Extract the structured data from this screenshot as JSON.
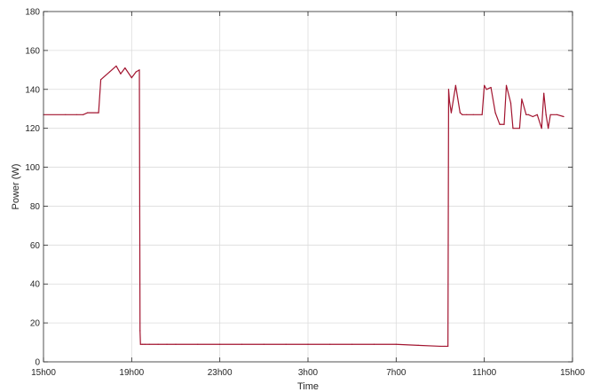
{
  "chart_data": {
    "type": "line",
    "xlabel": "Time",
    "ylabel": "Power (W)",
    "xlim": [
      15,
      39
    ],
    "ylim": [
      0,
      180
    ],
    "grid": true,
    "x_ticks": [
      {
        "value": 15,
        "label": "15h00"
      },
      {
        "value": 19,
        "label": "19h00"
      },
      {
        "value": 23,
        "label": "23h00"
      },
      {
        "value": 27,
        "label": "3h00"
      },
      {
        "value": 31,
        "label": "7h00"
      },
      {
        "value": 35,
        "label": "11h00"
      },
      {
        "value": 39,
        "label": "15h00"
      }
    ],
    "y_ticks": [
      0,
      20,
      40,
      60,
      80,
      100,
      120,
      140,
      160,
      180
    ],
    "series_color": "#a2142f",
    "series": [
      {
        "x": [
          15.0,
          16.0,
          16.5,
          16.8,
          17.0,
          17.5,
          17.6,
          17.8,
          18.0,
          18.3,
          18.5,
          18.7,
          19.0,
          19.2,
          19.35,
          19.38,
          19.4,
          19.5,
          19.6,
          19.8,
          20.2,
          20.6,
          21.0,
          22.0,
          23.0,
          24.0,
          25.0,
          26.0,
          27.0,
          28.0,
          29.0,
          30.0,
          31.0,
          32.0,
          33.0,
          33.2,
          33.35,
          33.38,
          33.42,
          33.5,
          33.7,
          33.9,
          34.0,
          34.2,
          34.5,
          34.9,
          35.0,
          35.1,
          35.3,
          35.5,
          35.7,
          35.9,
          36.0,
          36.2,
          36.3,
          36.6,
          36.7,
          36.9,
          37.0,
          37.2,
          37.4,
          37.6,
          37.7,
          37.8,
          37.9,
          38.0,
          38.3,
          38.6
        ],
        "y": [
          127,
          127,
          127,
          127,
          128,
          128,
          145,
          147,
          149,
          152,
          148,
          151,
          146,
          149,
          150,
          16,
          9,
          9,
          9,
          9,
          9,
          9,
          9,
          9,
          9,
          9,
          9,
          9,
          9,
          9,
          9,
          9,
          9,
          8.5,
          8,
          8,
          8,
          140,
          134,
          128,
          142,
          128,
          127,
          127,
          127,
          127,
          142,
          140,
          141,
          128,
          122,
          122,
          142,
          133,
          120,
          120,
          135,
          127,
          127,
          126,
          127,
          120,
          138,
          127,
          120,
          127,
          127,
          126
        ]
      }
    ]
  }
}
